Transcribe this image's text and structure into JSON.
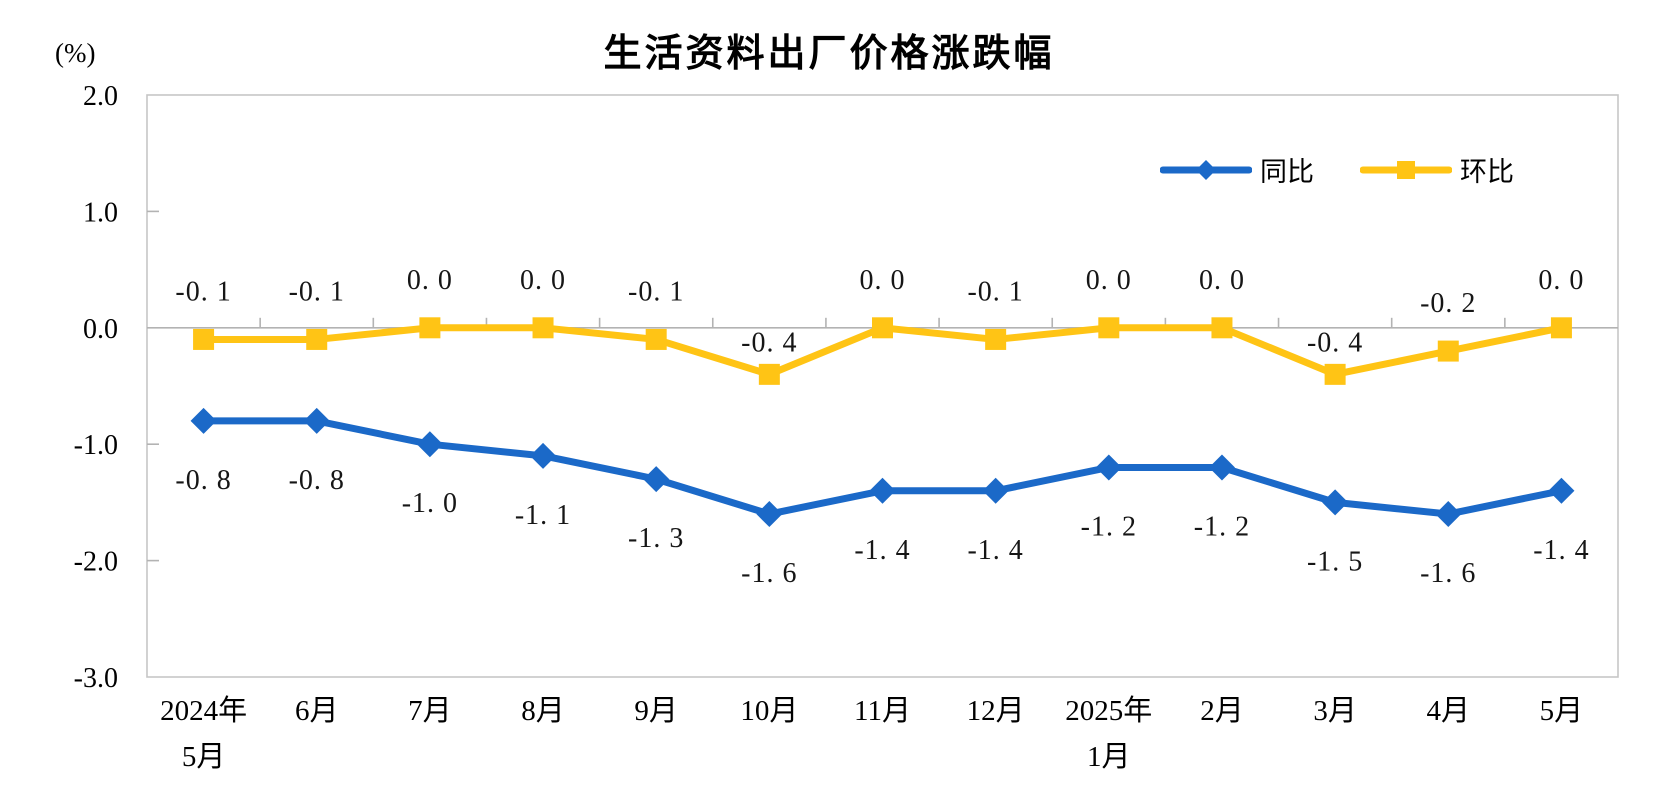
{
  "chart_data": {
    "type": "line",
    "title": "生活资料出厂价格涨跌幅",
    "unit_label": "(%)",
    "ylim": [
      -3.0,
      2.0
    ],
    "grid": false,
    "legend_position": "top-right-inside",
    "background_color": "#ffffff",
    "axis_color": "#c6c6c6",
    "zero_line_color": "#b3b3b3",
    "text_color": "#161616",
    "y_ticks": [
      {
        "value": 2.0,
        "label": "2.0"
      },
      {
        "value": 1.0,
        "label": "1.0"
      },
      {
        "value": 0.0,
        "label": "0.0"
      },
      {
        "value": -1.0,
        "label": "-1.0"
      },
      {
        "value": -2.0,
        "label": "-2.0"
      },
      {
        "value": -3.0,
        "label": "-3.0"
      }
    ],
    "categories": [
      {
        "lines": [
          "2024年",
          "5月"
        ]
      },
      {
        "lines": [
          "6月"
        ]
      },
      {
        "lines": [
          "7月"
        ]
      },
      {
        "lines": [
          "8月"
        ]
      },
      {
        "lines": [
          "9月"
        ]
      },
      {
        "lines": [
          "10月"
        ]
      },
      {
        "lines": [
          "11月"
        ]
      },
      {
        "lines": [
          "12月"
        ]
      },
      {
        "lines": [
          "2025年",
          "1月"
        ]
      },
      {
        "lines": [
          "2月"
        ]
      },
      {
        "lines": [
          "3月"
        ]
      },
      {
        "lines": [
          "4月"
        ]
      },
      {
        "lines": [
          "5月"
        ]
      }
    ],
    "series": [
      {
        "id": "yoy",
        "name": "同比",
        "color": "#1b69c8",
        "marker": "diamond",
        "label_side": "below",
        "values": [
          -0.8,
          -0.8,
          -1.0,
          -1.1,
          -1.3,
          -1.6,
          -1.4,
          -1.4,
          -1.2,
          -1.2,
          -1.5,
          -1.6,
          -1.4
        ],
        "labels": [
          "-0. 8",
          "-0. 8",
          "-1. 0",
          "-1. 1",
          "-1. 3",
          "-1. 6",
          "-1. 4",
          "-1. 4",
          "-1. 2",
          "-1. 2",
          "-1. 5",
          "-1. 6",
          "-1. 4"
        ]
      },
      {
        "id": "mom",
        "name": "环比",
        "color": "#ffc415",
        "marker": "square",
        "label_side": "above",
        "values": [
          -0.1,
          -0.1,
          0.0,
          0.0,
          -0.1,
          -0.4,
          0.0,
          -0.1,
          0.0,
          0.0,
          -0.4,
          -0.2,
          0.0
        ],
        "labels": [
          "-0. 1",
          "-0. 1",
          "0. 0",
          "0. 0",
          "-0. 1",
          "-0. 4",
          "0. 0",
          "-0. 1",
          "0. 0",
          "0. 0",
          "-0. 4",
          "-0. 2",
          "0. 0"
        ]
      }
    ]
  }
}
